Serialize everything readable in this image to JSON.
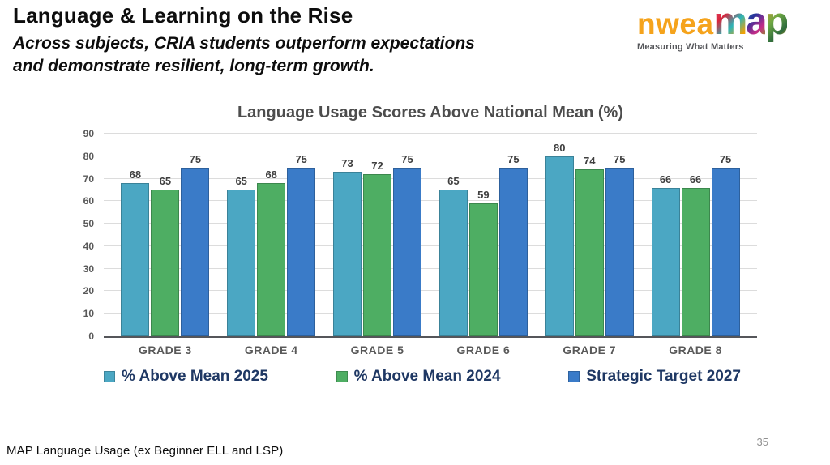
{
  "slide": {
    "title": "Language & Learning on the Rise",
    "subtitle_lines": [
      "Across subjects, CRIA students outperform expectations",
      "and demonstrate resilient, long-term growth."
    ],
    "footer": "MAP Language Usage (ex Beginner ELL and LSP)",
    "page_number": "35"
  },
  "logo": {
    "brand": "nwea",
    "product_letters": [
      "m",
      "a",
      "p"
    ],
    "tagline": "Measuring What Matters",
    "brand_color": "#F5A31C"
  },
  "chart_data": {
    "type": "bar",
    "title": "Language Usage Scores Above National Mean (%)",
    "categories": [
      "GRADE 3",
      "GRADE 4",
      "GRADE 5",
      "GRADE 6",
      "GRADE 7",
      "GRADE 8"
    ],
    "series": [
      {
        "name": "% Above Mean 2025",
        "color": "#4BA7C3",
        "values": [
          68,
          65,
          73,
          65,
          80,
          66
        ]
      },
      {
        "name": "% Above Mean 2024",
        "color": "#4EAE63",
        "values": [
          65,
          68,
          72,
          59,
          74,
          66
        ]
      },
      {
        "name": "Strategic Target 2027",
        "color": "#3A7BC8",
        "values": [
          75,
          75,
          75,
          75,
          75,
          75
        ]
      }
    ],
    "xlabel": "",
    "ylabel": "",
    "ylim": [
      0,
      90
    ],
    "ytick_step": 10,
    "grid": true,
    "legend_position": "bottom",
    "legend_text_color": "#1F3864"
  }
}
